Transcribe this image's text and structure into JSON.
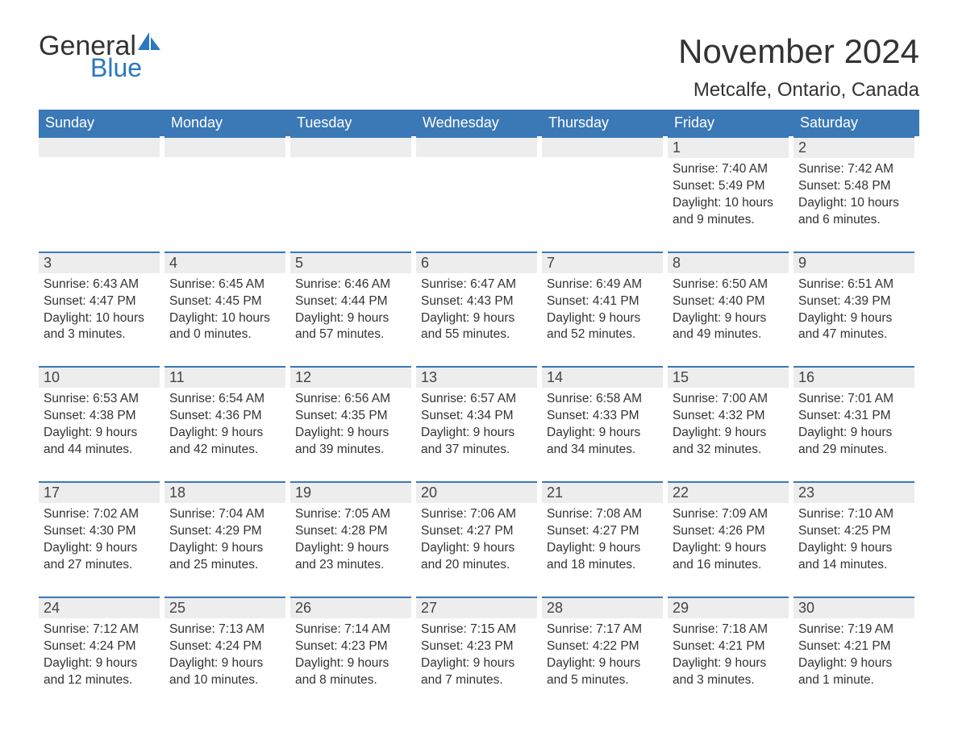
{
  "colors": {
    "header_bg": "#3b78b6",
    "header_text": "#ffffff",
    "daynum_bg": "#ededed",
    "daynum_top_border": "#3b78b6",
    "body_text": "#333333",
    "logo_blue": "#2a78c0",
    "logo_gray": "#333333",
    "page_bg": "#ffffff"
  },
  "logo": {
    "part1": "General",
    "part2": "Blue"
  },
  "title": "November 2024",
  "location": "Metcalfe, Ontario, Canada",
  "day_headers": [
    "Sunday",
    "Monday",
    "Tuesday",
    "Wednesday",
    "Thursday",
    "Friday",
    "Saturday"
  ],
  "weeks": [
    [
      {
        "empty": true
      },
      {
        "empty": true
      },
      {
        "empty": true
      },
      {
        "empty": true
      },
      {
        "empty": true
      },
      {
        "n": "1",
        "sr": "Sunrise: 7:40 AM",
        "ss": "Sunset: 5:49 PM",
        "d1": "Daylight: 10 hours",
        "d2": "and 9 minutes."
      },
      {
        "n": "2",
        "sr": "Sunrise: 7:42 AM",
        "ss": "Sunset: 5:48 PM",
        "d1": "Daylight: 10 hours",
        "d2": "and 6 minutes."
      }
    ],
    [
      {
        "n": "3",
        "sr": "Sunrise: 6:43 AM",
        "ss": "Sunset: 4:47 PM",
        "d1": "Daylight: 10 hours",
        "d2": "and 3 minutes."
      },
      {
        "n": "4",
        "sr": "Sunrise: 6:45 AM",
        "ss": "Sunset: 4:45 PM",
        "d1": "Daylight: 10 hours",
        "d2": "and 0 minutes."
      },
      {
        "n": "5",
        "sr": "Sunrise: 6:46 AM",
        "ss": "Sunset: 4:44 PM",
        "d1": "Daylight: 9 hours",
        "d2": "and 57 minutes."
      },
      {
        "n": "6",
        "sr": "Sunrise: 6:47 AM",
        "ss": "Sunset: 4:43 PM",
        "d1": "Daylight: 9 hours",
        "d2": "and 55 minutes."
      },
      {
        "n": "7",
        "sr": "Sunrise: 6:49 AM",
        "ss": "Sunset: 4:41 PM",
        "d1": "Daylight: 9 hours",
        "d2": "and 52 minutes."
      },
      {
        "n": "8",
        "sr": "Sunrise: 6:50 AM",
        "ss": "Sunset: 4:40 PM",
        "d1": "Daylight: 9 hours",
        "d2": "and 49 minutes."
      },
      {
        "n": "9",
        "sr": "Sunrise: 6:51 AM",
        "ss": "Sunset: 4:39 PM",
        "d1": "Daylight: 9 hours",
        "d2": "and 47 minutes."
      }
    ],
    [
      {
        "n": "10",
        "sr": "Sunrise: 6:53 AM",
        "ss": "Sunset: 4:38 PM",
        "d1": "Daylight: 9 hours",
        "d2": "and 44 minutes."
      },
      {
        "n": "11",
        "sr": "Sunrise: 6:54 AM",
        "ss": "Sunset: 4:36 PM",
        "d1": "Daylight: 9 hours",
        "d2": "and 42 minutes."
      },
      {
        "n": "12",
        "sr": "Sunrise: 6:56 AM",
        "ss": "Sunset: 4:35 PM",
        "d1": "Daylight: 9 hours",
        "d2": "and 39 minutes."
      },
      {
        "n": "13",
        "sr": "Sunrise: 6:57 AM",
        "ss": "Sunset: 4:34 PM",
        "d1": "Daylight: 9 hours",
        "d2": "and 37 minutes."
      },
      {
        "n": "14",
        "sr": "Sunrise: 6:58 AM",
        "ss": "Sunset: 4:33 PM",
        "d1": "Daylight: 9 hours",
        "d2": "and 34 minutes."
      },
      {
        "n": "15",
        "sr": "Sunrise: 7:00 AM",
        "ss": "Sunset: 4:32 PM",
        "d1": "Daylight: 9 hours",
        "d2": "and 32 minutes."
      },
      {
        "n": "16",
        "sr": "Sunrise: 7:01 AM",
        "ss": "Sunset: 4:31 PM",
        "d1": "Daylight: 9 hours",
        "d2": "and 29 minutes."
      }
    ],
    [
      {
        "n": "17",
        "sr": "Sunrise: 7:02 AM",
        "ss": "Sunset: 4:30 PM",
        "d1": "Daylight: 9 hours",
        "d2": "and 27 minutes."
      },
      {
        "n": "18",
        "sr": "Sunrise: 7:04 AM",
        "ss": "Sunset: 4:29 PM",
        "d1": "Daylight: 9 hours",
        "d2": "and 25 minutes."
      },
      {
        "n": "19",
        "sr": "Sunrise: 7:05 AM",
        "ss": "Sunset: 4:28 PM",
        "d1": "Daylight: 9 hours",
        "d2": "and 23 minutes."
      },
      {
        "n": "20",
        "sr": "Sunrise: 7:06 AM",
        "ss": "Sunset: 4:27 PM",
        "d1": "Daylight: 9 hours",
        "d2": "and 20 minutes."
      },
      {
        "n": "21",
        "sr": "Sunrise: 7:08 AM",
        "ss": "Sunset: 4:27 PM",
        "d1": "Daylight: 9 hours",
        "d2": "and 18 minutes."
      },
      {
        "n": "22",
        "sr": "Sunrise: 7:09 AM",
        "ss": "Sunset: 4:26 PM",
        "d1": "Daylight: 9 hours",
        "d2": "and 16 minutes."
      },
      {
        "n": "23",
        "sr": "Sunrise: 7:10 AM",
        "ss": "Sunset: 4:25 PM",
        "d1": "Daylight: 9 hours",
        "d2": "and 14 minutes."
      }
    ],
    [
      {
        "n": "24",
        "sr": "Sunrise: 7:12 AM",
        "ss": "Sunset: 4:24 PM",
        "d1": "Daylight: 9 hours",
        "d2": "and 12 minutes."
      },
      {
        "n": "25",
        "sr": "Sunrise: 7:13 AM",
        "ss": "Sunset: 4:24 PM",
        "d1": "Daylight: 9 hours",
        "d2": "and 10 minutes."
      },
      {
        "n": "26",
        "sr": "Sunrise: 7:14 AM",
        "ss": "Sunset: 4:23 PM",
        "d1": "Daylight: 9 hours",
        "d2": "and 8 minutes."
      },
      {
        "n": "27",
        "sr": "Sunrise: 7:15 AM",
        "ss": "Sunset: 4:23 PM",
        "d1": "Daylight: 9 hours",
        "d2": "and 7 minutes."
      },
      {
        "n": "28",
        "sr": "Sunrise: 7:17 AM",
        "ss": "Sunset: 4:22 PM",
        "d1": "Daylight: 9 hours",
        "d2": "and 5 minutes."
      },
      {
        "n": "29",
        "sr": "Sunrise: 7:18 AM",
        "ss": "Sunset: 4:21 PM",
        "d1": "Daylight: 9 hours",
        "d2": "and 3 minutes."
      },
      {
        "n": "30",
        "sr": "Sunrise: 7:19 AM",
        "ss": "Sunset: 4:21 PM",
        "d1": "Daylight: 9 hours",
        "d2": "and 1 minute."
      }
    ]
  ],
  "style": {
    "title_fontsize": 42,
    "location_fontsize": 24,
    "header_fontsize": 18,
    "daynum_fontsize": 18,
    "body_fontsize": 15.5,
    "daynum_top_border_width": 2
  }
}
